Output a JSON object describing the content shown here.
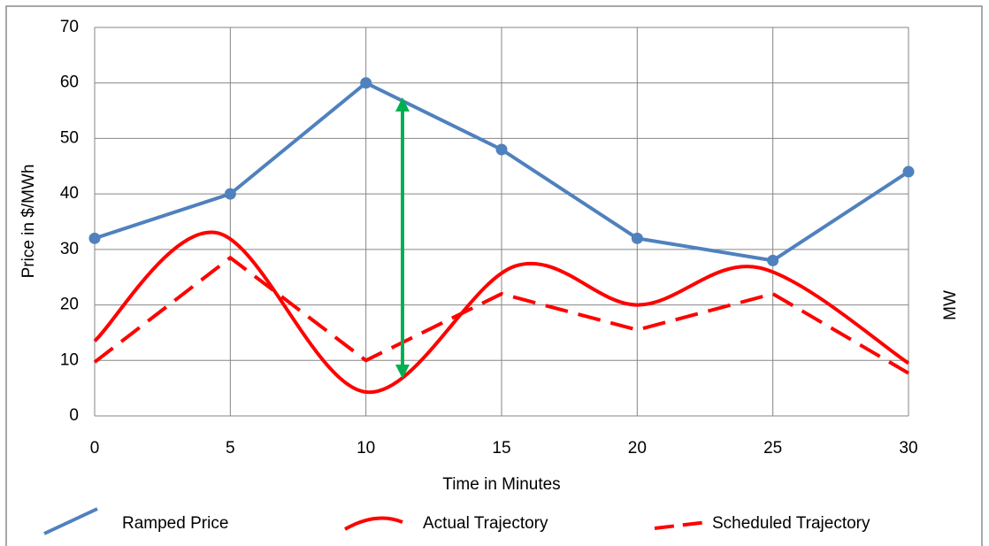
{
  "chart_data": {
    "type": "line",
    "x_label": "Time in Minutes",
    "y_label": "Price in $/MWh",
    "y2_label": "MW",
    "xlim": [
      0,
      30
    ],
    "xticks": [
      0,
      5,
      10,
      15,
      20,
      25,
      30
    ],
    "ylim": [
      0,
      70
    ],
    "yticks": [
      0,
      10,
      20,
      30,
      40,
      50,
      60,
      70
    ],
    "grid": true,
    "legend": "bottom",
    "series": [
      {
        "name": "Ramped Price",
        "color": "#4f81bd",
        "style": "solid",
        "smooth": false,
        "markers": true,
        "x": [
          0,
          5,
          10,
          15,
          20,
          25,
          30
        ],
        "values": [
          32,
          40,
          60,
          48,
          32,
          28,
          44
        ]
      },
      {
        "name": "Actual Trajectory",
        "color": "#ff0000",
        "style": "solid",
        "smooth": true,
        "markers": false,
        "x": [
          0,
          4.5,
          10,
          15.5,
          20,
          24.5,
          30
        ],
        "values": [
          13.5,
          33,
          4.3,
          27,
          20,
          26.7,
          9.5
        ]
      },
      {
        "name": "Scheduled Trajectory",
        "color": "#ff0000",
        "style": "dashed",
        "smooth": false,
        "markers": false,
        "x": [
          0,
          5,
          10,
          15,
          20,
          25,
          30
        ],
        "values": [
          9.7,
          28.5,
          10,
          22,
          15.5,
          22,
          7.7
        ]
      }
    ]
  }
}
